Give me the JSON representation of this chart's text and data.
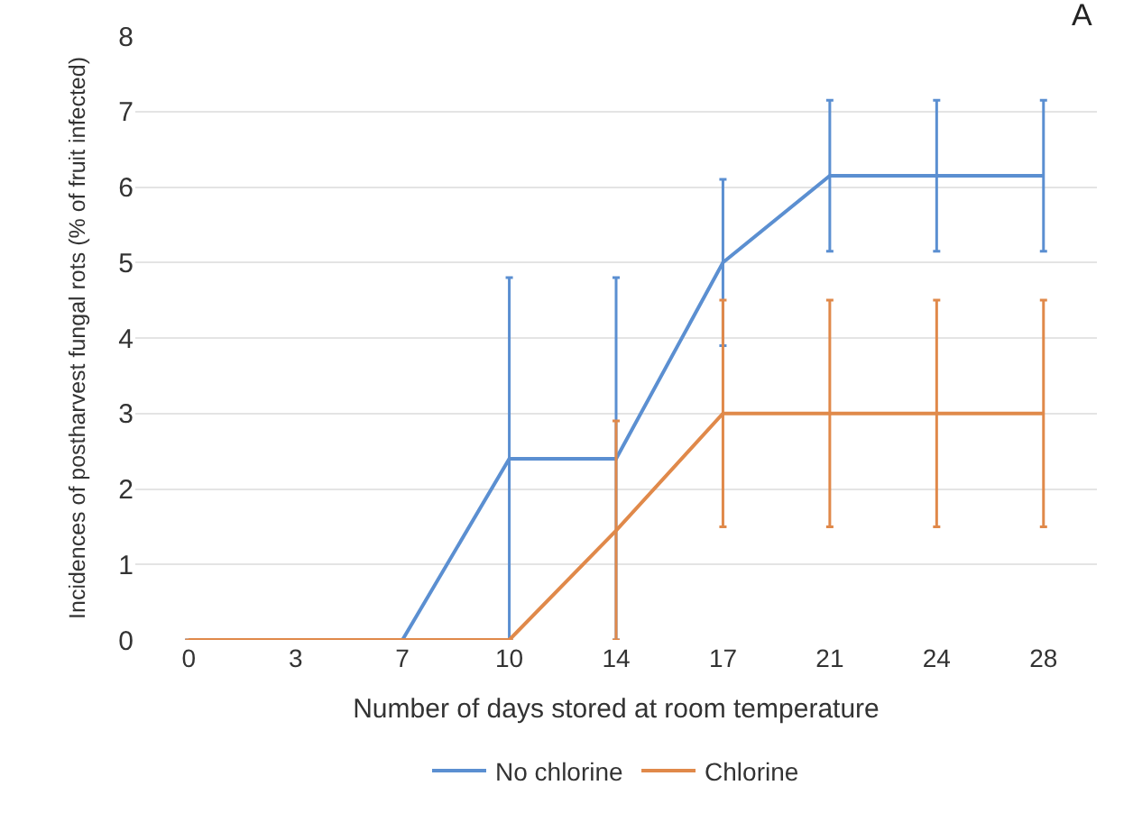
{
  "chart_data": {
    "type": "line",
    "xlabel": "Number of days stored at room temperature",
    "ylabel": "Incidences of postharvest fungal rots (% of fruit infected)",
    "categories": [
      "0",
      "3",
      "7",
      "10",
      "14",
      "17",
      "21",
      "24",
      "28"
    ],
    "series": [
      {
        "name": "No chlorine",
        "color": "#5b8fd1",
        "values": [
          0,
          0,
          0,
          2.4,
          2.4,
          5,
          6.15,
          6.15,
          6.15
        ],
        "errors": [
          null,
          null,
          null,
          2.4,
          2.4,
          1.1,
          1,
          1,
          1
        ]
      },
      {
        "name": "Chlorine",
        "color": "#e0894a",
        "values": [
          0,
          0,
          0,
          0,
          1.45,
          3,
          3,
          3,
          3
        ],
        "errors": [
          null,
          null,
          null,
          null,
          1.45,
          1.5,
          1.5,
          1.5,
          1.5
        ]
      }
    ],
    "ylim": [
      0,
      8
    ],
    "yticks": [
      0,
      1,
      2,
      3,
      4,
      5,
      6,
      7,
      8
    ],
    "grid": "y",
    "legend": "bottom",
    "marker": "none",
    "line_style": "solid",
    "annotations": [
      "A"
    ]
  }
}
